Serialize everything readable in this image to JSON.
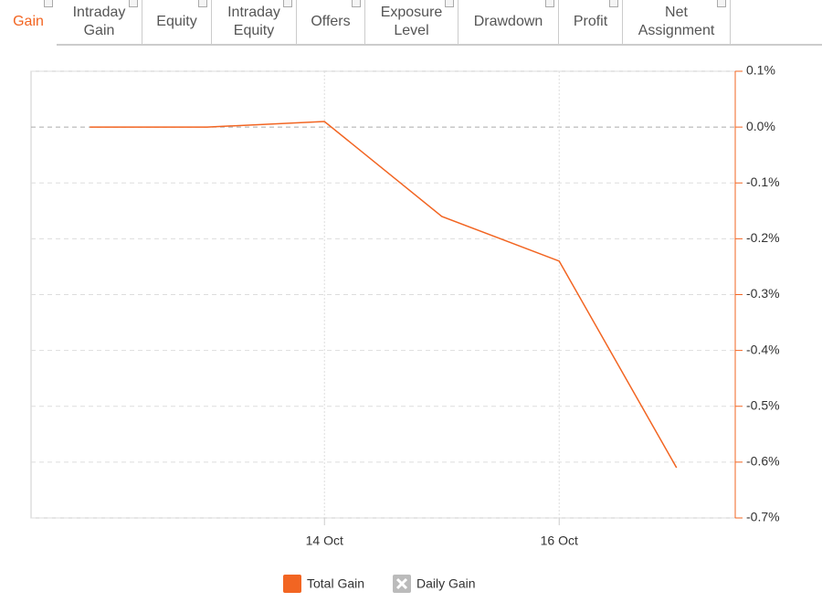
{
  "tabs": [
    "Gain",
    "Intraday Gain",
    "Equity",
    "Intraday Equity",
    "Offers",
    "Exposure Level",
    "Drawdown",
    "Profit",
    "Net Assignment"
  ],
  "active_tab": 0,
  "chart_data": {
    "type": "line",
    "categories": [
      null,
      null,
      "14 Oct",
      null,
      "16 Oct",
      null
    ],
    "series": [
      {
        "name": "Total Gain",
        "color": "#f26522",
        "values": [
          0,
          0,
          0.01,
          -0.16,
          -0.24,
          -0.61
        ]
      },
      {
        "name": "Daily Gain",
        "color": "#bbbbbb",
        "visible": false
      }
    ],
    "ylim": [
      -0.7,
      0.1
    ],
    "yticks": [
      {
        "value": 0.1,
        "label": "0.1%"
      },
      {
        "value": 0,
        "label": "0.0%"
      },
      {
        "value": -0.1,
        "label": "-0.1%"
      },
      {
        "value": -0.2,
        "label": "-0.2%"
      },
      {
        "value": -0.3,
        "label": "-0.3%"
      },
      {
        "value": -0.4,
        "label": "-0.4%"
      },
      {
        "value": -0.5,
        "label": "-0.5%"
      },
      {
        "value": -0.6,
        "label": "-0.6%"
      },
      {
        "value": -0.7,
        "label": "-0.7%"
      }
    ],
    "grid": true,
    "y_axis_side": "right"
  }
}
